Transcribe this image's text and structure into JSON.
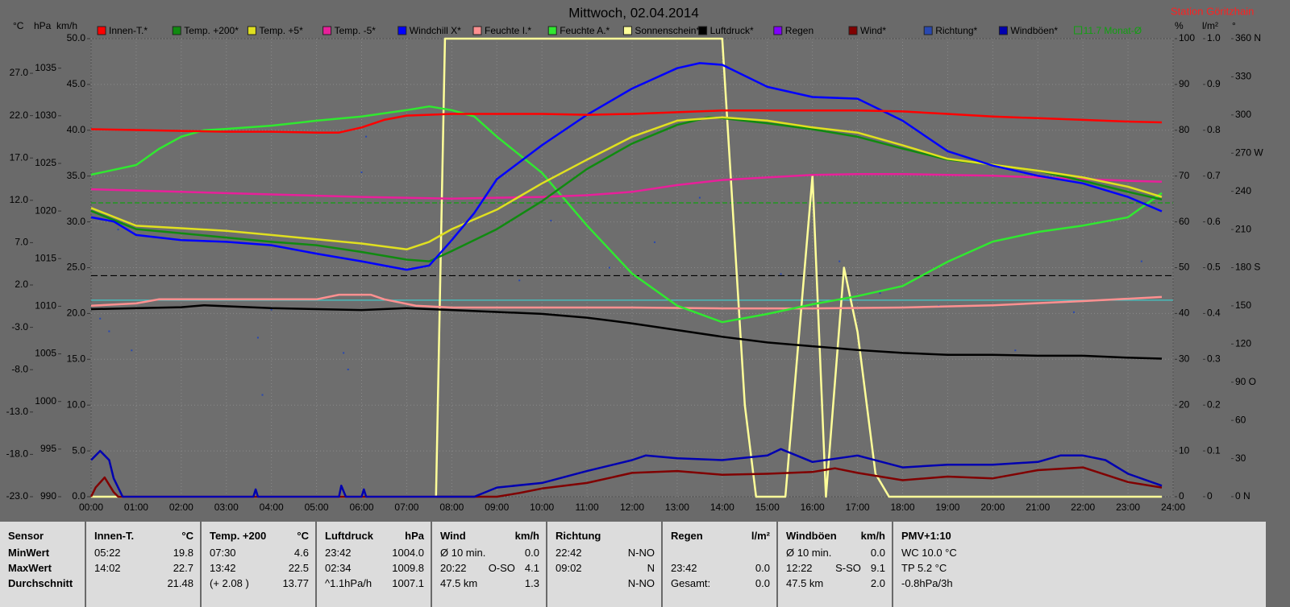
{
  "chart_data": {
    "type": "line",
    "title": "Mittwoch, 02.04.2014",
    "station": "Station Göritzhain",
    "xlim": [
      0,
      24
    ],
    "xticks": [
      {
        "value": 0,
        "label": "00:00"
      },
      {
        "value": 1,
        "label": "01:00"
      },
      {
        "value": 2,
        "label": "02:00"
      },
      {
        "value": 3,
        "label": "03:00"
      },
      {
        "value": 4,
        "label": "04:00"
      },
      {
        "value": 5,
        "label": "05:00"
      },
      {
        "value": 6,
        "label": "06:00"
      },
      {
        "value": 7,
        "label": "07:00"
      },
      {
        "value": 8,
        "label": "08:00"
      },
      {
        "value": 9,
        "label": "09:00"
      },
      {
        "value": 10,
        "label": "10:00"
      },
      {
        "value": 11,
        "label": "11:00"
      },
      {
        "value": 12,
        "label": "12:00"
      },
      {
        "value": 13,
        "label": "13:00"
      },
      {
        "value": 14,
        "label": "14:00"
      },
      {
        "value": 15,
        "label": "15:00"
      },
      {
        "value": 16,
        "label": "16:00"
      },
      {
        "value": 17,
        "label": "17:00"
      },
      {
        "value": 18,
        "label": "18:00"
      },
      {
        "value": 19,
        "label": "19:00"
      },
      {
        "value": 20,
        "label": "20:00"
      },
      {
        "value": 21,
        "label": "21:00"
      },
      {
        "value": 22,
        "label": "22:00"
      },
      {
        "value": 23,
        "label": "23:00"
      },
      {
        "value": 24,
        "label": "24:00"
      }
    ],
    "grid": true,
    "grid_axis": "kmh",
    "axes": {
      "temp": {
        "label": "°C",
        "lim": [
          -23,
          31.09
        ],
        "ticks": [
          {
            "value": 27,
            "label": "27.0"
          },
          {
            "value": 22,
            "label": "22.0"
          },
          {
            "value": 17,
            "label": "17.0"
          },
          {
            "value": 12,
            "label": "12.0"
          },
          {
            "value": 7,
            "label": "7.0"
          },
          {
            "value": 2,
            "label": "2.0"
          },
          {
            "value": -3,
            "label": "-3.0"
          },
          {
            "value": -8,
            "label": "-8.0"
          },
          {
            "value": -13,
            "label": "-13.0"
          },
          {
            "value": -18,
            "label": "-18.0"
          },
          {
            "value": -23,
            "label": "-23.0"
          }
        ]
      },
      "hpa": {
        "label": "hPa",
        "lim": [
          990,
          1038.1
        ],
        "ticks": [
          1035,
          1030,
          1025,
          1020,
          1015,
          1010,
          1005,
          1000,
          995,
          990
        ]
      },
      "kmh": {
        "label": "km/h",
        "lim": [
          0,
          50
        ],
        "ticks": [
          {
            "value": 50,
            "label": "50.0"
          },
          {
            "value": 45,
            "label": "45.0"
          },
          {
            "value": 40,
            "label": "40.0"
          },
          {
            "value": 35,
            "label": "35.0"
          },
          {
            "value": 30,
            "label": "30.0"
          },
          {
            "value": 25,
            "label": "25.0"
          },
          {
            "value": 20,
            "label": "20.0"
          },
          {
            "value": 15,
            "label": "15.0"
          },
          {
            "value": 10,
            "label": "10.0"
          },
          {
            "value": 5,
            "label": "5.0"
          },
          {
            "value": 0,
            "label": "0.0"
          }
        ]
      },
      "pct": {
        "label": "%",
        "lim": [
          0,
          100
        ],
        "ticks": [
          100,
          90,
          80,
          70,
          60,
          50,
          40,
          30,
          20,
          10,
          0
        ]
      },
      "rain": {
        "label": "l/m²",
        "lim": [
          0,
          1
        ],
        "ticks": [
          {
            "value": 1,
            "label": "1.0"
          },
          0.9,
          0.8,
          0.7,
          0.6,
          0.5,
          0.4,
          0.3,
          0.2,
          0.1,
          0
        ]
      },
      "dir": {
        "label": "°",
        "lim": [
          0,
          360
        ],
        "ticks": [
          {
            "value": 360,
            "label": "360 N"
          },
          330,
          300,
          {
            "value": 270,
            "label": "270 W"
          },
          240,
          210,
          {
            "value": 180,
            "label": "180 S"
          },
          150,
          120,
          {
            "value": 90,
            "label": "90 O"
          },
          60,
          30,
          {
            "value": 0,
            "label": "0 N"
          }
        ]
      }
    },
    "series": [
      {
        "name": "Innen-T.*",
        "color": "#ff0000",
        "axis": "temp",
        "x": [
          0,
          1,
          2,
          3,
          4,
          5,
          5.5,
          6,
          6.5,
          7,
          8,
          9,
          10,
          11,
          12,
          13,
          14,
          15,
          16,
          17,
          18,
          19,
          20,
          21,
          22,
          23,
          23.75
        ],
        "values": [
          20.4,
          20.3,
          20.2,
          20.1,
          20.1,
          20.0,
          20.0,
          20.6,
          21.5,
          22.0,
          22.2,
          22.2,
          22.2,
          22.1,
          22.2,
          22.4,
          22.6,
          22.6,
          22.6,
          22.6,
          22.5,
          22.2,
          21.9,
          21.7,
          21.5,
          21.3,
          21.2
        ]
      },
      {
        "name": "Temp. +200*",
        "color": "#108a10",
        "axis": "temp",
        "x": [
          0,
          1,
          2,
          3,
          4,
          5,
          6,
          7,
          7.5,
          8,
          9,
          10,
          11,
          12,
          13,
          13.7,
          14,
          15,
          16,
          17,
          18,
          19,
          20,
          21,
          22,
          23,
          23.75
        ],
        "values": [
          10.75,
          8.6,
          8.1,
          7.6,
          7.1,
          6.7,
          5.9,
          5.0,
          4.8,
          6.0,
          8.6,
          11.9,
          15.7,
          18.7,
          20.9,
          21.8,
          21.7,
          21.1,
          20.4,
          19.5,
          18.1,
          16.8,
          16.2,
          15.5,
          14.3,
          13.0,
          12.1
        ]
      },
      {
        "name": "Temp. +5*",
        "color": "#e0e020",
        "axis": "temp",
        "x": [
          0,
          1,
          2,
          3,
          4,
          5,
          6,
          7,
          7.5,
          8,
          9,
          10,
          11,
          12,
          13,
          14,
          15,
          16,
          17,
          18,
          19,
          20,
          21,
          22,
          23,
          23.75
        ],
        "values": [
          11.1,
          9.0,
          8.7,
          8.4,
          7.9,
          7.4,
          6.9,
          6.2,
          7.1,
          8.6,
          10.9,
          14.0,
          16.8,
          19.5,
          21.4,
          21.8,
          21.4,
          20.6,
          20.0,
          18.5,
          16.9,
          16.2,
          15.5,
          14.7,
          13.6,
          12.4
        ]
      },
      {
        "name": "Temp. -5*",
        "color": "#e8209a",
        "axis": "temp",
        "x": [
          0,
          2,
          4,
          6,
          8,
          10,
          11,
          12,
          13,
          14,
          15,
          16,
          17,
          18,
          19,
          20,
          21,
          22,
          23,
          23.75
        ],
        "values": [
          13.3,
          13.0,
          12.7,
          12.4,
          12.2,
          12.4,
          12.6,
          13.0,
          13.8,
          14.4,
          14.7,
          15.0,
          15.1,
          15.1,
          15.0,
          14.9,
          14.7,
          14.5,
          14.3,
          14.2
        ]
      },
      {
        "name": "Windchill X*",
        "color": "#0000ff",
        "axis": "temp",
        "x": [
          0,
          0.5,
          1,
          2,
          3,
          4,
          5,
          6,
          7,
          7.5,
          8,
          8.5,
          9,
          10,
          11,
          12,
          13,
          13.5,
          14,
          15,
          16,
          17,
          18,
          19,
          20,
          21,
          22,
          23,
          23.75
        ],
        "values": [
          10.0,
          9.5,
          7.9,
          7.3,
          7.1,
          6.7,
          5.7,
          4.8,
          3.8,
          4.3,
          7.3,
          10.5,
          14.5,
          18.5,
          22.1,
          25.2,
          27.6,
          28.2,
          28.0,
          25.4,
          24.2,
          24.0,
          21.4,
          17.8,
          16.1,
          14.9,
          14.0,
          12.4,
          10.7
        ]
      },
      {
        "name": "Feuchte I.*",
        "color": "#ff9090",
        "axis": "pct",
        "x": [
          0,
          1,
          1.5,
          3,
          5,
          5.5,
          6.2,
          6.5,
          7.2,
          8,
          10,
          12,
          14,
          16,
          18,
          20,
          22,
          23.75
        ],
        "values": [
          41.7,
          42.2,
          43.1,
          43.1,
          43.1,
          44.1,
          44.1,
          43.1,
          41.7,
          41.3,
          41.3,
          41.3,
          41.1,
          41.1,
          41.3,
          41.8,
          42.7,
          43.6
        ]
      },
      {
        "name": "Feuchte A.*",
        "color": "#30e830",
        "axis": "pct",
        "x": [
          0,
          1,
          1.5,
          2,
          2.5,
          3,
          4,
          5,
          6,
          7,
          7.5,
          8,
          8.5,
          9,
          10,
          11,
          12,
          13,
          14,
          15,
          16,
          17,
          18,
          19,
          20,
          21,
          22,
          23,
          23.75
        ],
        "values": [
          70.3,
          72.4,
          75.9,
          78.6,
          80.0,
          80.3,
          81.0,
          82.1,
          83.0,
          84.4,
          85.2,
          84.4,
          83.0,
          78.6,
          70.7,
          59.2,
          48.7,
          41.7,
          38.1,
          39.9,
          42.0,
          43.8,
          46.0,
          51.3,
          55.7,
          57.8,
          59.2,
          61.0,
          66.3
        ]
      },
      {
        "name": "Sonnenschein*",
        "color": "#ffff99",
        "axis": "pct",
        "x": [
          0,
          7.65,
          7.85,
          14.0,
          14.5,
          14.75,
          15.4,
          16.0,
          16.3,
          16.7,
          17.0,
          17.4,
          17.7,
          23.75
        ],
        "values": [
          0,
          0,
          100,
          100,
          20,
          0,
          0,
          70,
          0,
          50,
          36,
          5,
          0,
          0
        ]
      },
      {
        "name": "Luftdruck*",
        "color": "#000000",
        "axis": "hpa",
        "x": [
          0,
          2,
          2.5,
          4,
          6,
          7,
          8,
          10,
          11,
          12,
          13,
          14,
          15,
          16,
          17,
          18,
          19,
          20,
          21,
          22,
          23,
          23.75
        ],
        "values": [
          1009.7,
          1009.9,
          1010.1,
          1009.8,
          1009.6,
          1009.8,
          1009.6,
          1009.2,
          1008.8,
          1008.2,
          1007.5,
          1006.8,
          1006.2,
          1005.8,
          1005.4,
          1005.1,
          1004.9,
          1004.9,
          1004.8,
          1004.8,
          1004.6,
          1004.5
        ]
      },
      {
        "name": "Regen",
        "color": "#8000ff",
        "axis": "rain",
        "x": [],
        "values": []
      },
      {
        "name": "Wind*",
        "color": "#800000",
        "axis": "kmh",
        "x": [
          0,
          0.1,
          0.3,
          0.5,
          0.6,
          9,
          9.5,
          10,
          11,
          12,
          13,
          14,
          15,
          16,
          16.5,
          17,
          18,
          19,
          20,
          21,
          22,
          23,
          23.75
        ],
        "values": [
          0,
          1.0,
          2.1,
          0.5,
          0,
          0,
          0.4,
          0.9,
          1.5,
          2.6,
          2.8,
          2.4,
          2.5,
          2.7,
          3.1,
          2.6,
          1.8,
          2.2,
          2.0,
          2.9,
          3.2,
          1.6,
          1.0
        ]
      },
      {
        "name": "Richtung*",
        "color": "#2848b0",
        "axis": "dir",
        "style": "dots",
        "x": [
          0.2,
          0.4,
          0.6,
          0.9,
          3.7,
          3.8,
          4.0,
          5.6,
          5.7,
          6.0,
          6.1,
          9.5,
          10.2,
          11.5,
          12.5,
          13.5,
          15.3,
          16.6,
          17.5,
          18.8,
          20.5,
          21.8,
          23.3
        ],
        "values": [
          140,
          130,
          210,
          115,
          125,
          80,
          147,
          113,
          100,
          255,
          283,
          170,
          217,
          180,
          200,
          235,
          175,
          185,
          160,
          150,
          115,
          145,
          185
        ]
      },
      {
        "name": "Windböen*",
        "color": "#0000b0",
        "axis": "kmh",
        "x": [
          0,
          0.2,
          0.4,
          0.5,
          0.7,
          3.6,
          3.65,
          3.7,
          5.5,
          5.55,
          5.65,
          6,
          6.05,
          6.1,
          8.5,
          9,
          10,
          11,
          12,
          12.3,
          13,
          14,
          15,
          15.3,
          16,
          17,
          18,
          19,
          20,
          21,
          21.5,
          22,
          22.5,
          23,
          23.75
        ],
        "values": [
          4.0,
          5.0,
          4.0,
          2.0,
          0,
          0,
          0.8,
          0,
          0,
          1.2,
          0,
          0,
          0.8,
          0,
          0,
          1.0,
          1.5,
          2.8,
          4.0,
          4.5,
          4.2,
          4.0,
          4.5,
          5.2,
          3.8,
          4.5,
          3.2,
          3.5,
          3.5,
          3.8,
          4.5,
          4.5,
          4.0,
          2.5,
          1.2
        ]
      }
    ],
    "monthly_avg": {
      "label": "11.7 Monat-Ø",
      "value": 11.7,
      "axis": "temp",
      "color": "#10a010"
    },
    "ref_lines": [
      {
        "axis": "temp",
        "value": 3.1,
        "color": "#000000",
        "dashed": true
      },
      {
        "axis": "pct",
        "value": 42.9,
        "color": "#40c8c8",
        "dashed": false
      }
    ]
  },
  "table": {
    "panels": [
      {
        "title": "Sensor",
        "rows": [
          {
            "l": "MinWert"
          },
          {
            "l": "MaxWert"
          },
          {
            "l": "Durchschnitt"
          }
        ]
      },
      {
        "title": "Innen-T.",
        "unit": "°C",
        "rows": [
          {
            "l": "05:22",
            "r": "19.8"
          },
          {
            "l": "14:02",
            "r": "22.7"
          },
          {
            "r": "21.48"
          }
        ]
      },
      {
        "title": "Temp. +200",
        "unit": "°C",
        "rows": [
          {
            "l": "07:30",
            "r": "4.6"
          },
          {
            "l": "13:42",
            "r": "22.5"
          },
          {
            "l": "(+ 2.08 )",
            "r": "13.77"
          }
        ]
      },
      {
        "title": "Luftdruck",
        "unit": "hPa",
        "rows": [
          {
            "l": "23:42",
            "r": "1004.0"
          },
          {
            "l": "02:34",
            "r": "1009.8"
          },
          {
            "l": "^1.1hPa/h",
            "r": "1007.1"
          }
        ]
      },
      {
        "title": "Wind",
        "unit": "km/h",
        "rows": [
          {
            "l": "Ø 10 min.",
            "r": "0.0"
          },
          {
            "l": "20:22",
            "m": "O-SO",
            "r": "4.1"
          },
          {
            "l": "47.5 km",
            "r": "1.3"
          }
        ]
      },
      {
        "title": "Richtung",
        "rows": [
          {
            "l": "22:42",
            "r": "N-NO"
          },
          {
            "l": "09:02",
            "r": "N"
          },
          {
            "r": "N-NO"
          }
        ]
      },
      {
        "title": "Regen",
        "unit": "l/m²",
        "rows": [
          {},
          {
            "l": "23:42",
            "r": "0.0"
          },
          {
            "l": "Gesamt:",
            "r": "0.0"
          }
        ]
      },
      {
        "title": "Windböen",
        "unit": "km/h",
        "rows": [
          {
            "l": "Ø 10 min.",
            "r": "0.0"
          },
          {
            "l": "12:22",
            "m": "S-SO",
            "r": "9.1"
          },
          {
            "l": "47.5 km",
            "r": "2.0"
          }
        ]
      },
      {
        "title": "PMV+1:10",
        "rows": [
          {
            "l": "WC 10.0 °C"
          },
          {
            "l": "TP 5.2 °C"
          },
          {
            "l": "-0.8hPa/3h"
          }
        ]
      }
    ]
  }
}
